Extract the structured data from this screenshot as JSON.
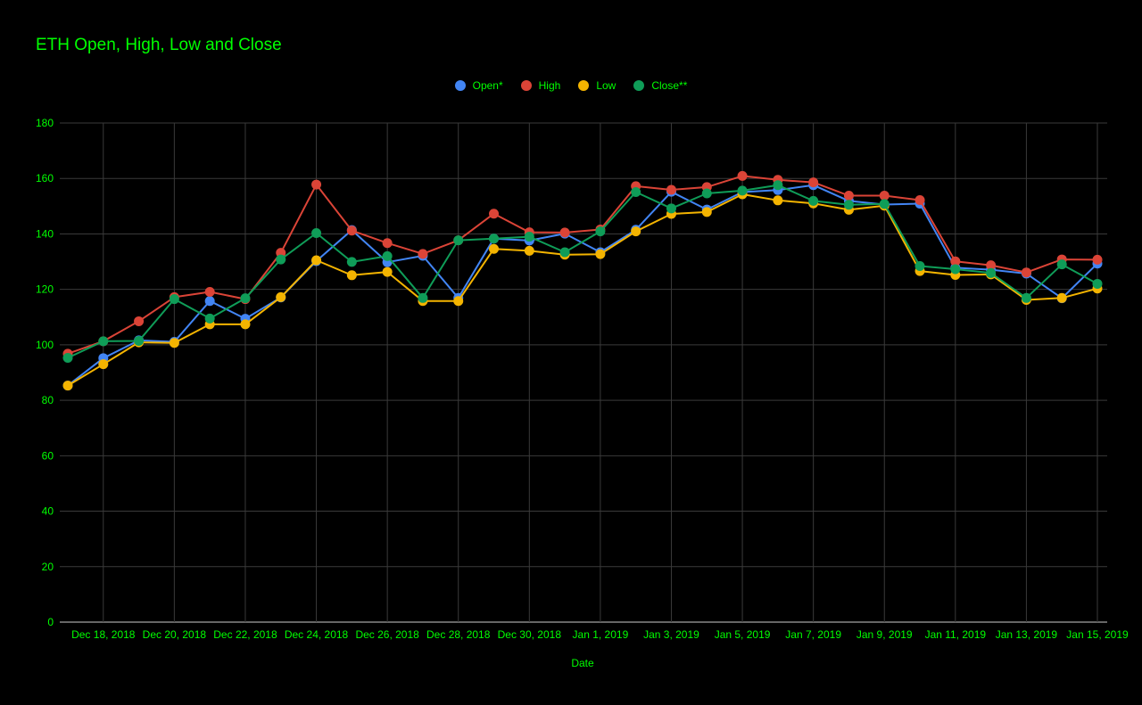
{
  "chart_data": {
    "type": "line",
    "title": "ETH Open, High, Low and Close",
    "xlabel": "Date",
    "ylabel": "",
    "ylim": [
      0,
      180
    ],
    "yticks": [
      0,
      20,
      40,
      60,
      80,
      100,
      120,
      140,
      160,
      180
    ],
    "grid": true,
    "legend_position": "top-center",
    "x": [
      "Dec 17, 2018",
      "Dec 18, 2018",
      "Dec 19, 2018",
      "Dec 20, 2018",
      "Dec 21, 2018",
      "Dec 22, 2018",
      "Dec 23, 2018",
      "Dec 24, 2018",
      "Dec 25, 2018",
      "Dec 26, 2018",
      "Dec 27, 2018",
      "Dec 28, 2018",
      "Dec 29, 2018",
      "Dec 30, 2018",
      "Dec 31, 2018",
      "Jan 1, 2019",
      "Jan 2, 2019",
      "Jan 3, 2019",
      "Jan 4, 2019",
      "Jan 5, 2019",
      "Jan 6, 2019",
      "Jan 7, 2019",
      "Jan 8, 2019",
      "Jan 9, 2019",
      "Jan 10, 2019",
      "Jan 11, 2019",
      "Jan 12, 2019",
      "Jan 13, 2019",
      "Jan 14, 2019",
      "Jan 15, 2019"
    ],
    "xtick_labels": [
      "Dec 18, 2018",
      "Dec 20, 2018",
      "Dec 22, 2018",
      "Dec 24, 2018",
      "Dec 26, 2018",
      "Dec 28, 2018",
      "Dec 30, 2018",
      "Jan 1, 2019",
      "Jan 3, 2019",
      "Jan 5, 2019",
      "Jan 7, 2019",
      "Jan 9, 2019",
      "Jan 11, 2019",
      "Jan 13, 2019",
      "Jan 15, 2019"
    ],
    "series": [
      {
        "name": "Open*",
        "color": "#4285f4",
        "values": [
          85.3,
          95.2,
          101.6,
          101.1,
          115.8,
          109.4,
          117.1,
          130.2,
          141.4,
          129.8,
          132.1,
          116.9,
          138.3,
          137.6,
          140.1,
          133.4,
          141.5,
          155.2,
          148.8,
          155.1,
          155.8,
          157.6,
          151.9,
          150.6,
          150.9,
          127.8,
          127.1,
          125.7,
          116.8,
          129.3
        ]
      },
      {
        "name": "High",
        "color": "#db4437",
        "values": [
          96.8,
          101.3,
          108.5,
          117.2,
          119.1,
          116.5,
          133.2,
          157.8,
          141.2,
          136.7,
          132.8,
          137.7,
          147.3,
          140.6,
          140.5,
          141.6,
          157.2,
          155.9,
          156.9,
          160.9,
          159.5,
          158.6,
          153.8,
          153.8,
          152.2,
          130.1,
          128.7,
          126.1,
          130.8,
          130.7
        ]
      },
      {
        "name": "Low",
        "color": "#f4b400",
        "values": [
          85.3,
          93.0,
          100.9,
          100.7,
          107.4,
          107.4,
          117.2,
          130.5,
          125.1,
          126.3,
          115.8,
          115.8,
          134.6,
          133.9,
          132.5,
          132.7,
          140.9,
          147.2,
          147.9,
          154.3,
          152.1,
          151.0,
          148.7,
          150.2,
          126.6,
          125.2,
          125.4,
          116.2,
          116.9,
          120.3
        ]
      },
      {
        "name": "Close**",
        "color": "#0f9d58",
        "values": [
          95.3,
          101.3,
          101.4,
          116.5,
          109.5,
          116.8,
          130.8,
          140.3,
          129.9,
          132.0,
          116.9,
          137.7,
          138.3,
          139.0,
          133.4,
          140.9,
          155.1,
          149.2,
          154.6,
          155.6,
          157.6,
          151.9,
          150.5,
          150.8,
          128.4,
          127.3,
          125.9,
          116.9,
          129.0,
          122.0
        ]
      }
    ]
  },
  "colors": {
    "background": "#000000",
    "text": "#00ff00",
    "grid": "#3a3a3a",
    "axis": "#cccccc"
  }
}
